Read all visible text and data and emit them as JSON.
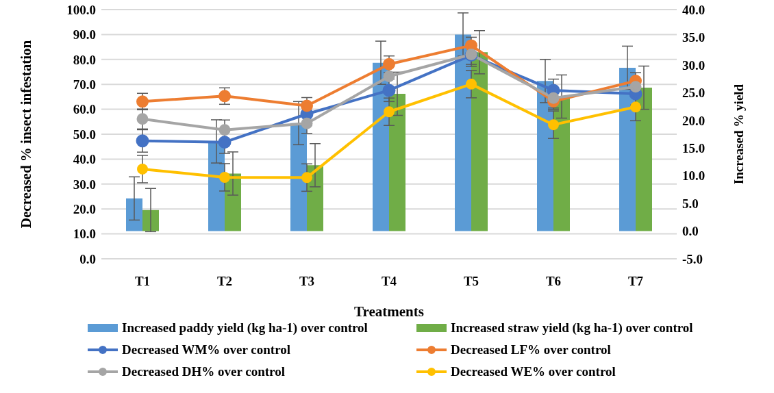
{
  "chart_data": {
    "type": "bar",
    "xlabel": "Treatments",
    "ylabel": "Decreased  % insect infestation",
    "y2label": "Increased % yield",
    "categories": [
      "T1",
      "T2",
      "T3",
      "T4",
      "T5",
      "T6",
      "T7"
    ],
    "series": [
      {
        "name": "Increased paddy yield  (kg ha-1) over control",
        "axis": "y2",
        "color": "#5b9bd5",
        "values": [
          5.9,
          16.2,
          19.5,
          30.4,
          35.5,
          27.1,
          29.5
        ],
        "errors": [
          3.9,
          3.9,
          3.9,
          3.9,
          3.9,
          3.9,
          3.9
        ]
      },
      {
        "name": "Increased straw yield  (kg ha-1) over control",
        "axis": "y2",
        "color": "#70ad47",
        "values": [
          3.8,
          10.4,
          11.9,
          24.8,
          32.3,
          24.3,
          25.9
        ],
        "errors": [
          3.9,
          3.9,
          3.9,
          3.9,
          3.9,
          3.9,
          3.9
        ]
      },
      {
        "name": "Decreased WM% over control",
        "type": "line",
        "color": "#4472c4",
        "values": [
          47.3,
          46.8,
          58.1,
          67.6,
          81.7,
          67.6,
          66.2
        ],
        "errors": [
          4.5,
          4.5,
          4.5,
          4.5,
          4.5,
          4.5,
          4.5
        ]
      },
      {
        "name": "Decreased LF% over control",
        "type": "line",
        "color": "#ed7d31",
        "values": [
          63.1,
          65.3,
          61.4,
          78.1,
          85.6,
          63.2,
          71.4
        ],
        "errors": [
          3.3,
          3.3,
          3.3,
          3.3,
          3.3,
          3.3,
          3.3
        ]
      },
      {
        "name": "Decreased DH% over control",
        "type": "line",
        "color": "#a5a5a5",
        "values": [
          56.1,
          51.7,
          54.3,
          73.2,
          82.0,
          64.5,
          69.0
        ],
        "errors": [
          4.0,
          4.0,
          4.0,
          null,
          4.0,
          4.0,
          null
        ]
      },
      {
        "name": "Decreased WE% over control",
        "type": "line",
        "color": "#ffc000",
        "values": [
          36.0,
          32.7,
          32.6,
          59.0,
          70.1,
          53.8,
          60.9
        ],
        "errors": [
          5.5,
          5.5,
          5.5,
          5.5,
          5.5,
          5.5,
          5.5
        ]
      }
    ],
    "ylim": [
      0,
      100
    ],
    "yticks": [
      {
        "value": 0,
        "label": "0.0"
      },
      {
        "value": 10,
        "label": "10.0"
      },
      {
        "value": 20,
        "label": "20.0"
      },
      {
        "value": 30,
        "label": "30.0"
      },
      {
        "value": 40,
        "label": "40.0"
      },
      {
        "value": 50,
        "label": "50.0"
      },
      {
        "value": 60,
        "label": "60.0"
      },
      {
        "value": 70,
        "label": "70.0"
      },
      {
        "value": 80,
        "label": "80.0"
      },
      {
        "value": 90,
        "label": "90.0"
      },
      {
        "value": 100,
        "label": "100.0"
      }
    ],
    "y2lim": [
      -5,
      40
    ],
    "y2ticks": [
      {
        "value": -5,
        "label": "-5.0"
      },
      {
        "value": 0,
        "label": "0.0"
      },
      {
        "value": 5,
        "label": "5.0"
      },
      {
        "value": 10,
        "label": "10.0"
      },
      {
        "value": 15,
        "label": "15.0"
      },
      {
        "value": 20,
        "label": "20.0"
      },
      {
        "value": 25,
        "label": "25.0"
      },
      {
        "value": 30,
        "label": "30.0"
      },
      {
        "value": 35,
        "label": "35.0"
      },
      {
        "value": 40,
        "label": "40.0"
      }
    ],
    "grid": "y",
    "legend": "bottom",
    "marker": "circle",
    "line_style": "solid"
  }
}
